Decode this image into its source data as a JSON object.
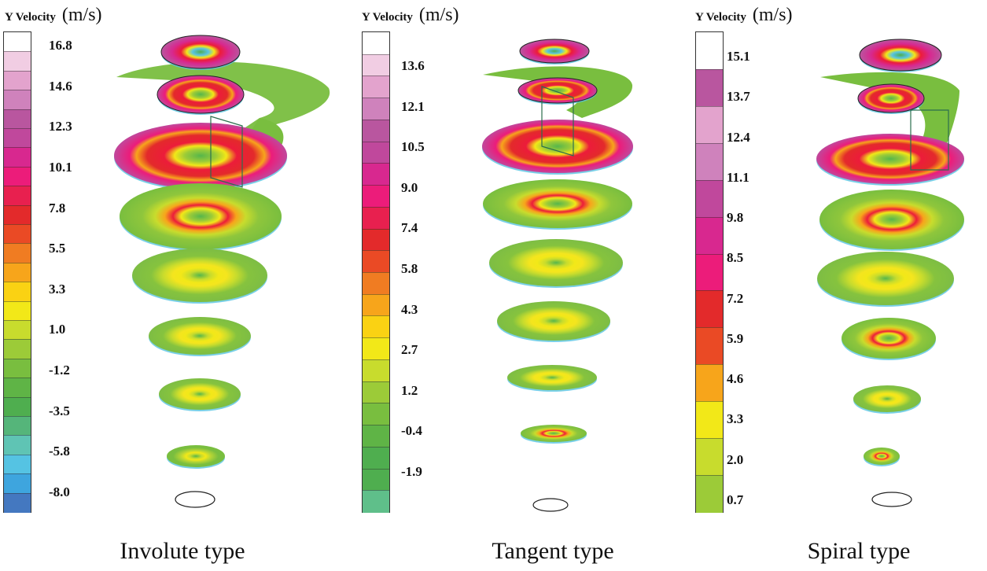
{
  "chart_data": [
    {
      "type": "heatmap",
      "title": "Involute type",
      "colorbar": {
        "label": "Y Velocity",
        "unit": "(m/s)",
        "ticks": [
          "16.8",
          "14.6",
          "12.3",
          "10.1",
          "7.8",
          "5.5",
          "3.3",
          "1.0",
          "-1.2",
          "-3.5",
          "-5.8",
          "-8.0"
        ],
        "range": [
          -8.0,
          16.8
        ]
      },
      "slices": 8
    },
    {
      "type": "heatmap",
      "title": "Tangent type",
      "colorbar": {
        "label": "Y Velocity",
        "unit": "(m/s)",
        "ticks": [
          "13.6",
          "12.1",
          "10.5",
          "9.0",
          "7.4",
          "5.8",
          "4.3",
          "2.7",
          "1.2",
          "-0.4",
          "-1.9"
        ],
        "range": [
          -1.9,
          13.6
        ]
      },
      "slices": 8
    },
    {
      "type": "heatmap",
      "title": "Spiral type",
      "colorbar": {
        "label": "Y Velocity",
        "unit": "(m/s)",
        "ticks": [
          "15.1",
          "13.7",
          "12.4",
          "11.1",
          "9.8",
          "8.5",
          "7.2",
          "5.9",
          "4.6",
          "3.3",
          "2.0",
          "0.7"
        ],
        "range": [
          0.7,
          15.1
        ]
      },
      "slices": 8
    }
  ],
  "colors": {
    "palette": [
      "#ffffff",
      "#f1cde3",
      "#e3a3cd",
      "#cf82bc",
      "#b9569f",
      "#c0489c",
      "#d8288f",
      "#ec1c7a",
      "#e8204f",
      "#e32a2b",
      "#ea4a25",
      "#f07c22",
      "#f7a51b",
      "#fad213",
      "#f2e818",
      "#c8dc2d",
      "#9ccb38",
      "#79be3f",
      "#5fb446",
      "#4fae4f",
      "#55b57a",
      "#5fc4b4",
      "#55c3e3",
      "#3ea5de",
      "#4478c0"
    ],
    "ring_hot": "#ec1c3a",
    "ring_magenta": "#d02a8e",
    "ring_yellow": "#f4e51e",
    "ring_orange": "#f08a24",
    "field_green": "#79be3f",
    "edge_cyan": "#57c4e2"
  }
}
